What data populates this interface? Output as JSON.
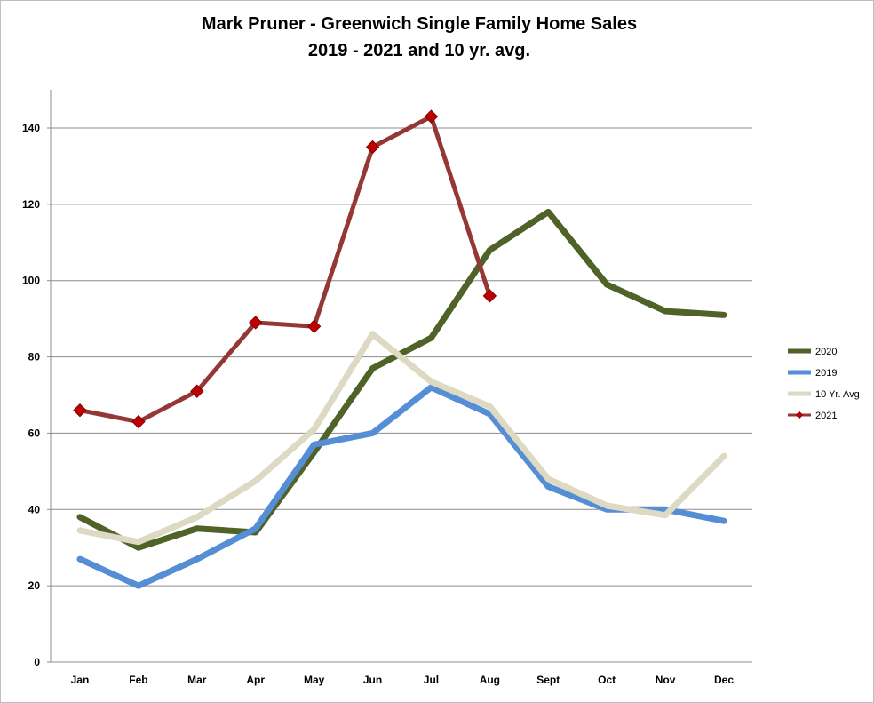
{
  "chart_data": {
    "type": "line",
    "title_lines": [
      "Mark Pruner - Greenwich Single Family Home Sales",
      "2019 - 2021 and 10 yr. avg."
    ],
    "categories": [
      "Jan",
      "Feb",
      "Mar",
      "Apr",
      "May",
      "Jun",
      "Jul",
      "Aug",
      "Sept",
      "Oct",
      "Nov",
      "Dec"
    ],
    "ylim": [
      0,
      150
    ],
    "yticks": [
      0,
      20,
      40,
      60,
      80,
      100,
      120,
      140
    ],
    "grid": true,
    "legend_position": "right",
    "series": [
      {
        "name": "2020",
        "color": "#4f6228",
        "marker": "none",
        "values": [
          38,
          30,
          35,
          34,
          55,
          77,
          85,
          108,
          118,
          99,
          92,
          91
        ]
      },
      {
        "name": "2019",
        "color": "#558ed5",
        "marker": "none",
        "values": [
          27,
          20,
          27,
          35,
          57,
          60,
          72,
          65,
          46,
          40,
          40,
          37
        ]
      },
      {
        "name": "10 Yr. Avg",
        "color": "#ddd9c3",
        "marker": "none",
        "values": [
          34.5,
          31.5,
          38,
          47.5,
          61,
          86,
          73.5,
          67,
          48,
          41,
          38.5,
          54
        ]
      },
      {
        "name": "2021",
        "color": "#953735",
        "marker": "diamond",
        "marker_color": "#c00000",
        "values": [
          66,
          63,
          71,
          89,
          88,
          135,
          143,
          96,
          null,
          null,
          null,
          null
        ]
      }
    ]
  }
}
